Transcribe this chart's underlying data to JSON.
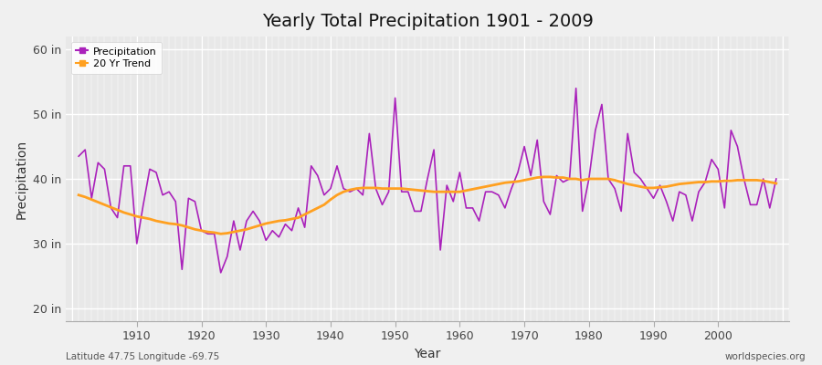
{
  "title": "Yearly Total Precipitation 1901 - 2009",
  "xlabel": "Year",
  "ylabel": "Precipitation",
  "ytick_labels": [
    "20 in",
    "30 in",
    "40 in",
    "50 in",
    "60 in"
  ],
  "ytick_values": [
    20,
    30,
    40,
    50,
    60
  ],
  "ylim": [
    18,
    62
  ],
  "xlim": [
    1899,
    2011
  ],
  "bg_color": "#f0f0f0",
  "plot_bg_color": "#e8e8e8",
  "precip_color": "#aa22bb",
  "trend_color": "#FFA020",
  "bottom_left_text": "Latitude 47.75 Longitude -69.75",
  "bottom_right_text": "worldspecies.org",
  "legend_precip": "Precipitation",
  "legend_trend": "20 Yr Trend",
  "years": [
    1901,
    1902,
    1903,
    1904,
    1905,
    1906,
    1907,
    1908,
    1909,
    1910,
    1911,
    1912,
    1913,
    1914,
    1915,
    1916,
    1917,
    1918,
    1919,
    1920,
    1921,
    1922,
    1923,
    1924,
    1925,
    1926,
    1927,
    1928,
    1929,
    1930,
    1931,
    1932,
    1933,
    1934,
    1935,
    1936,
    1937,
    1938,
    1939,
    1940,
    1941,
    1942,
    1943,
    1944,
    1945,
    1946,
    1947,
    1948,
    1949,
    1950,
    1951,
    1952,
    1953,
    1954,
    1955,
    1956,
    1957,
    1958,
    1959,
    1960,
    1961,
    1962,
    1963,
    1964,
    1965,
    1966,
    1967,
    1968,
    1969,
    1970,
    1971,
    1972,
    1973,
    1974,
    1975,
    1976,
    1977,
    1978,
    1979,
    1980,
    1981,
    1982,
    1983,
    1984,
    1985,
    1986,
    1987,
    1988,
    1989,
    1990,
    1991,
    1992,
    1993,
    1994,
    1995,
    1996,
    1997,
    1998,
    1999,
    2000,
    2001,
    2002,
    2003,
    2004,
    2005,
    2006,
    2007,
    2008,
    2009
  ],
  "precip": [
    43.5,
    44.5,
    37.0,
    42.5,
    41.5,
    35.5,
    34.0,
    42.0,
    42.0,
    30.0,
    36.0,
    41.5,
    41.0,
    37.5,
    38.0,
    36.5,
    26.0,
    37.0,
    36.5,
    32.0,
    31.5,
    31.5,
    25.5,
    28.0,
    33.5,
    29.0,
    33.5,
    35.0,
    33.5,
    30.5,
    32.0,
    31.0,
    33.0,
    32.0,
    35.5,
    32.5,
    42.0,
    40.5,
    37.5,
    38.5,
    42.0,
    38.5,
    38.0,
    38.5,
    37.5,
    47.0,
    38.5,
    36.0,
    38.0,
    52.5,
    38.0,
    38.0,
    35.0,
    35.0,
    40.0,
    44.5,
    29.0,
    39.0,
    36.5,
    41.0,
    35.5,
    35.5,
    33.5,
    38.0,
    38.0,
    37.5,
    35.5,
    38.5,
    41.0,
    45.0,
    40.5,
    46.0,
    36.5,
    34.5,
    40.5,
    39.5,
    40.0,
    54.0,
    35.0,
    40.0,
    47.5,
    51.5,
    40.0,
    38.5,
    35.0,
    47.0,
    41.0,
    40.0,
    38.5,
    37.0,
    39.0,
    36.5,
    33.5,
    38.0,
    37.5,
    33.5,
    38.0,
    39.5,
    43.0,
    41.5,
    35.5,
    47.5,
    45.0,
    40.0,
    36.0,
    36.0,
    40.0,
    35.5,
    40.0
  ],
  "trend": [
    37.5,
    37.2,
    36.8,
    36.4,
    36.0,
    35.6,
    35.2,
    34.8,
    34.5,
    34.2,
    34.0,
    33.8,
    33.5,
    33.3,
    33.1,
    33.0,
    32.8,
    32.5,
    32.2,
    32.0,
    31.8,
    31.7,
    31.5,
    31.6,
    31.8,
    32.0,
    32.2,
    32.5,
    32.8,
    33.1,
    33.3,
    33.5,
    33.6,
    33.8,
    34.0,
    34.5,
    35.0,
    35.5,
    36.0,
    36.8,
    37.5,
    38.0,
    38.3,
    38.5,
    38.6,
    38.6,
    38.6,
    38.5,
    38.5,
    38.5,
    38.5,
    38.4,
    38.3,
    38.2,
    38.1,
    38.0,
    38.0,
    38.0,
    38.0,
    38.0,
    38.2,
    38.4,
    38.6,
    38.8,
    39.0,
    39.2,
    39.4,
    39.5,
    39.6,
    39.8,
    40.0,
    40.2,
    40.3,
    40.3,
    40.2,
    40.2,
    40.0,
    40.0,
    39.8,
    40.0,
    40.0,
    40.0,
    40.0,
    39.8,
    39.5,
    39.2,
    39.0,
    38.8,
    38.6,
    38.6,
    38.7,
    38.8,
    39.0,
    39.2,
    39.3,
    39.4,
    39.5,
    39.5,
    39.6,
    39.6,
    39.7,
    39.7,
    39.8,
    39.8,
    39.8,
    39.8,
    39.7,
    39.5,
    39.3
  ]
}
